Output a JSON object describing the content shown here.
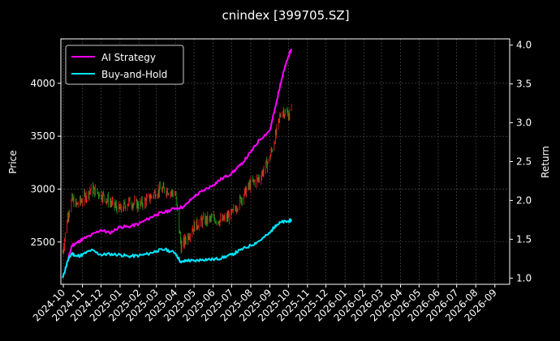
{
  "chart_data": {
    "type": "line",
    "title": "cnindex [399705.SZ]",
    "xlabel": "",
    "ylabel_left": "Price",
    "ylabel_right": "Return",
    "x_ticks": [
      "2024-10",
      "2024-11",
      "2024-12",
      "2025-01",
      "2025-02",
      "2025-03",
      "2025-04",
      "2025-05",
      "2025-06",
      "2025-07",
      "2025-08",
      "2025-09",
      "2025-10",
      "2025-11",
      "2025-12",
      "2026-01",
      "2026-02",
      "2026-03",
      "2026-04",
      "2026-05",
      "2026-06",
      "2026-07",
      "2026-08",
      "2026-09"
    ],
    "x_range": [
      "2024-09-27",
      "2026-09-25"
    ],
    "left_axis": {
      "range": [
        2100,
        4420
      ],
      "ticks": [
        2500,
        3000,
        3500,
        4000
      ]
    },
    "right_axis": {
      "range": [
        0.92,
        4.08
      ],
      "ticks": [
        "1.0",
        "1.5",
        "2.0",
        "2.5",
        "3.0",
        "3.5",
        "4.0"
      ]
    },
    "grid": true,
    "legend": {
      "position": "top-left",
      "entries": [
        "AI Strategy",
        "Buy-and-Hold"
      ]
    },
    "colors": {
      "ai_strategy": "#ff00ff",
      "buy_hold": "#00e5ff",
      "candle_up": "#ff2222",
      "candle_down": "#1fa31f",
      "grid": "#555555"
    },
    "series": [
      {
        "name": "AI Strategy",
        "axis": "right",
        "points": [
          [
            "2024-09-30",
            1.0
          ],
          [
            "2024-10-08",
            1.22
          ],
          [
            "2024-10-15",
            1.42
          ],
          [
            "2024-10-22",
            1.45
          ],
          [
            "2024-11-01",
            1.5
          ],
          [
            "2024-11-15",
            1.55
          ],
          [
            "2024-12-01",
            1.62
          ],
          [
            "2024-12-15",
            1.58
          ],
          [
            "2025-01-01",
            1.66
          ],
          [
            "2025-01-15",
            1.66
          ],
          [
            "2025-02-01",
            1.7
          ],
          [
            "2025-02-15",
            1.76
          ],
          [
            "2025-03-01",
            1.82
          ],
          [
            "2025-03-15",
            1.85
          ],
          [
            "2025-04-01",
            1.9
          ],
          [
            "2025-04-15",
            1.92
          ],
          [
            "2025-05-01",
            2.05
          ],
          [
            "2025-05-15",
            2.12
          ],
          [
            "2025-06-01",
            2.2
          ],
          [
            "2025-06-15",
            2.28
          ],
          [
            "2025-07-01",
            2.35
          ],
          [
            "2025-07-15",
            2.45
          ],
          [
            "2025-08-01",
            2.62
          ],
          [
            "2025-08-15",
            2.78
          ],
          [
            "2025-09-01",
            2.9
          ],
          [
            "2025-09-10",
            3.2
          ],
          [
            "2025-09-18",
            3.5
          ],
          [
            "2025-09-25",
            3.7
          ],
          [
            "2025-10-01",
            3.85
          ],
          [
            "2025-10-06",
            3.95
          ]
        ]
      },
      {
        "name": "Buy-and-Hold",
        "axis": "right",
        "points": [
          [
            "2024-09-30",
            1.0
          ],
          [
            "2024-10-08",
            1.22
          ],
          [
            "2024-10-15",
            1.32
          ],
          [
            "2024-10-22",
            1.28
          ],
          [
            "2024-11-01",
            1.3
          ],
          [
            "2024-11-15",
            1.36
          ],
          [
            "2024-12-01",
            1.3
          ],
          [
            "2024-12-15",
            1.31
          ],
          [
            "2025-01-01",
            1.3
          ],
          [
            "2025-01-15",
            1.28
          ],
          [
            "2025-02-01",
            1.29
          ],
          [
            "2025-02-15",
            1.31
          ],
          [
            "2025-03-01",
            1.35
          ],
          [
            "2025-03-15",
            1.37
          ],
          [
            "2025-04-01",
            1.32
          ],
          [
            "2025-04-10",
            1.2
          ],
          [
            "2025-04-20",
            1.23
          ],
          [
            "2025-05-01",
            1.22
          ],
          [
            "2025-05-15",
            1.24
          ],
          [
            "2025-06-01",
            1.24
          ],
          [
            "2025-06-15",
            1.26
          ],
          [
            "2025-07-01",
            1.3
          ],
          [
            "2025-07-15",
            1.36
          ],
          [
            "2025-08-01",
            1.42
          ],
          [
            "2025-08-15",
            1.48
          ],
          [
            "2025-09-01",
            1.58
          ],
          [
            "2025-09-10",
            1.68
          ],
          [
            "2025-09-20",
            1.72
          ],
          [
            "2025-10-01",
            1.73
          ],
          [
            "2025-10-06",
            1.75
          ]
        ]
      },
      {
        "name": "Price",
        "axis": "left",
        "type": "candlestick",
        "points": [
          [
            "2024-09-30",
            2400
          ],
          [
            "2024-10-08",
            2750
          ],
          [
            "2024-10-15",
            2900
          ],
          [
            "2024-10-22",
            2850
          ],
          [
            "2024-11-01",
            2900
          ],
          [
            "2024-11-15",
            3000
          ],
          [
            "2024-12-01",
            2950
          ],
          [
            "2024-12-15",
            2880
          ],
          [
            "2025-01-01",
            2800
          ],
          [
            "2025-01-15",
            2880
          ],
          [
            "2025-02-01",
            2850
          ],
          [
            "2025-02-15",
            2900
          ],
          [
            "2025-03-01",
            2980
          ],
          [
            "2025-03-15",
            3000
          ],
          [
            "2025-04-01",
            2950
          ],
          [
            "2025-04-10",
            2450
          ],
          [
            "2025-04-20",
            2550
          ],
          [
            "2025-05-01",
            2650
          ],
          [
            "2025-05-15",
            2700
          ],
          [
            "2025-06-01",
            2720
          ],
          [
            "2025-06-15",
            2700
          ],
          [
            "2025-07-01",
            2760
          ],
          [
            "2025-07-15",
            2900
          ],
          [
            "2025-08-01",
            3050
          ],
          [
            "2025-08-15",
            3100
          ],
          [
            "2025-09-01",
            3300
          ],
          [
            "2025-09-10",
            3500
          ],
          [
            "2025-09-20",
            3750
          ],
          [
            "2025-10-01",
            3700
          ],
          [
            "2025-10-06",
            3750
          ]
        ]
      }
    ]
  }
}
